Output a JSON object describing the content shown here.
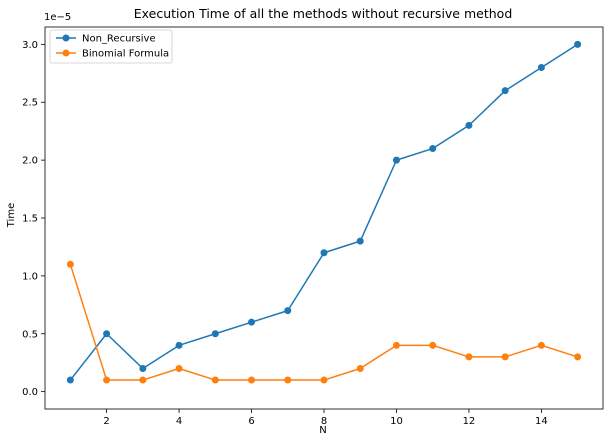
{
  "chart_data": {
    "type": "line",
    "title": "Execution Time of all the methods without recursive method",
    "xlabel": "N",
    "ylabel": "Time",
    "y_offset_label": "1e−5",
    "x": [
      1,
      2,
      3,
      4,
      5,
      6,
      7,
      8,
      9,
      10,
      11,
      12,
      13,
      14,
      15
    ],
    "xlim": [
      0.3,
      15.7
    ],
    "ylim": [
      -0.15,
      3.15
    ],
    "x_ticks": [
      2,
      4,
      6,
      8,
      10,
      12,
      14
    ],
    "x_tick_labels": [
      "2",
      "4",
      "6",
      "8",
      "10",
      "12",
      "14"
    ],
    "y_ticks": [
      0.0,
      0.5,
      1.0,
      1.5,
      2.0,
      2.5,
      3.0
    ],
    "y_tick_labels": [
      "0.0",
      "0.5",
      "1.0",
      "1.5",
      "2.0",
      "2.5",
      "3.0"
    ],
    "grid": false,
    "legend_position": "top-left",
    "series": [
      {
        "name": "Non_Recursive",
        "color": "#1f77b4",
        "marker": "circle",
        "values": [
          0.1,
          0.5,
          0.2,
          0.4,
          0.5,
          0.6,
          0.7,
          1.2,
          1.3,
          2.0,
          2.1,
          2.3,
          2.6,
          2.8,
          3.0
        ]
      },
      {
        "name": "Binomial Formula",
        "color": "#ff7f0e",
        "marker": "circle",
        "values": [
          1.1,
          0.1,
          0.1,
          0.2,
          0.1,
          0.1,
          0.1,
          0.1,
          0.2,
          0.4,
          0.4,
          0.3,
          0.3,
          0.4,
          0.3
        ]
      }
    ]
  }
}
